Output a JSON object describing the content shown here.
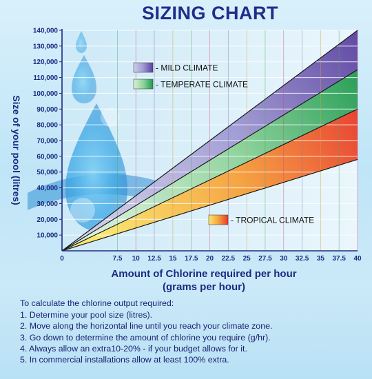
{
  "chart_data": {
    "type": "area",
    "title": "SIZING CHART",
    "xlabel": "Amount of Chlorine required per hour",
    "xlabel_line2": "(grams per hour)",
    "ylabel": "Size of your pool (litres)",
    "xlim": [
      0,
      40
    ],
    "ylim": [
      0,
      140000
    ],
    "x_ticks": [
      "0",
      "7.5",
      "10",
      "12.5",
      "15",
      "17.5",
      "20",
      "22.5",
      "25",
      "27.5",
      "30",
      "32.5",
      "35",
      "37.5",
      "40"
    ],
    "y_ticks": [
      "10,000",
      "20,000",
      "30,000",
      "40,000",
      "50,000",
      "60,000",
      "70,000",
      "80,000",
      "90,000",
      "100,000",
      "110,000",
      "120,000",
      "130,000",
      "140,000"
    ],
    "grid": true,
    "series": [
      {
        "name": "MILD CLIMATE",
        "x": [
          0,
          40
        ],
        "y": [
          0,
          140000
        ],
        "colors": [
          "#5a3f9f",
          "#9f9ad3",
          "#cfcde8"
        ]
      },
      {
        "name": "TEMPERATE CLIMATE",
        "x": [
          0,
          40
        ],
        "y": [
          0,
          115000
        ],
        "colors": [
          "#1f9a4f",
          "#8fd39b",
          "#d8f0d6"
        ]
      },
      {
        "name": "TROPICAL CLIMATE",
        "x": [
          0,
          40
        ],
        "y": [
          0,
          90000
        ],
        "colors": [
          "#e83a2a",
          "#f7a23a",
          "#fbe56a"
        ]
      },
      {
        "name": "",
        "x": [
          0,
          40
        ],
        "y": [
          0,
          58000
        ]
      }
    ],
    "legend_placement": "inside"
  },
  "instructions": {
    "heading": "To calculate the chlorine output required:",
    "steps": [
      "1. Determine your pool size (litres).",
      "2. Move along the horizontal line until you reach your climate zone.",
      "3. Go down to determine the amount of chlorine you require (g/hr).",
      "4. Always allow an extra10-20% - if your budget allows for it.",
      "5. In commercial installations allow at least 100% extra."
    ]
  }
}
